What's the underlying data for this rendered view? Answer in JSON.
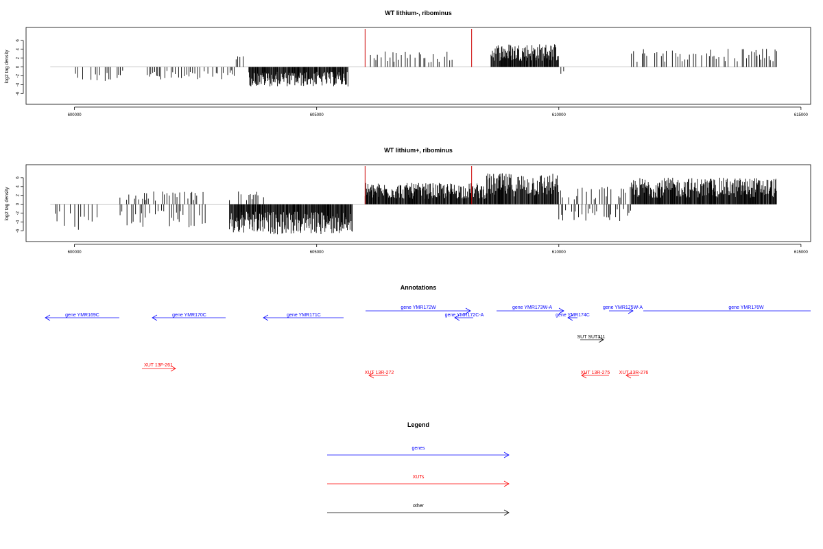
{
  "chart_data": [
    {
      "type": "bar",
      "title": "WT lithium-, ribominus",
      "ylabel": "log2 tag density",
      "ylim": [
        -7.5,
        8
      ],
      "yticks": [
        -6,
        -4,
        -2,
        0,
        2,
        4,
        6
      ],
      "xlim": [
        599000,
        615200
      ],
      "xticks": [
        600000,
        605000,
        610000,
        615000
      ],
      "markers": [
        606000,
        608200
      ],
      "segments": [
        {
          "start": 599500,
          "end": 600000,
          "sign": 0
        },
        {
          "start": 600020,
          "end": 601100,
          "sign": -1,
          "amp": 3.2
        },
        {
          "start": 601500,
          "end": 603300,
          "sign": -1,
          "amp": 2.8
        },
        {
          "start": 603300,
          "end": 603500,
          "sign": 1,
          "amp": 2.5
        },
        {
          "start": 603600,
          "end": 605650,
          "sign": -1,
          "amp": 4.4,
          "dense": 1
        },
        {
          "start": 606000,
          "end": 607800,
          "sign": 1,
          "amp": 3.5
        },
        {
          "start": 608600,
          "end": 610000,
          "sign": 1,
          "amp": 5.3,
          "dense": 1
        },
        {
          "start": 610000,
          "end": 610120,
          "sign": -1,
          "amp": 2.0
        },
        {
          "start": 611500,
          "end": 614500,
          "sign": 1,
          "amp": 4.2
        }
      ]
    },
    {
      "type": "bar",
      "title": "WT lithium+, ribominus",
      "ylabel": "log2 tag density",
      "ylim": [
        -7.5,
        8
      ],
      "yticks": [
        -6,
        -4,
        -2,
        0,
        2,
        4,
        6
      ],
      "xlim": [
        599000,
        615200
      ],
      "xticks": [
        600000,
        605000,
        610000,
        615000
      ],
      "markers": [
        606000,
        608200
      ],
      "segments": [
        {
          "start": 599500,
          "end": 600500,
          "sign": -1,
          "amp": 6.0
        },
        {
          "start": 600800,
          "end": 602700,
          "sign": -1,
          "amp": 5.5
        },
        {
          "start": 600800,
          "end": 602700,
          "sign": 1,
          "amp": 3.2
        },
        {
          "start": 603200,
          "end": 605750,
          "sign": -1,
          "amp": 6.8,
          "dense": 1
        },
        {
          "start": 603200,
          "end": 604000,
          "sign": 1,
          "amp": 3.5
        },
        {
          "start": 606000,
          "end": 608500,
          "sign": 1,
          "amp": 4.8,
          "dense": 1
        },
        {
          "start": 608500,
          "end": 610000,
          "sign": 1,
          "amp": 7.0,
          "dense": 1
        },
        {
          "start": 610000,
          "end": 611500,
          "sign": -1,
          "amp": 3.8
        },
        {
          "start": 610000,
          "end": 611500,
          "sign": 1,
          "amp": 4.0
        },
        {
          "start": 611500,
          "end": 614500,
          "sign": 1,
          "amp": 6.0,
          "dense": 1
        }
      ]
    }
  ],
  "annotations": {
    "title": "Annotations",
    "genes": [
      {
        "label": "gene YMR169C"
      },
      {
        "label": "gene YMR170C"
      },
      {
        "label": "gene YMR171C"
      },
      {
        "label": "gene YMR172W"
      },
      {
        "label": "gene YMR172C-A"
      },
      {
        "label": "gene YMR173W-A"
      },
      {
        "label": "gene YMR174C"
      },
      {
        "label": "gene YMR175W-A"
      },
      {
        "label": "gene YMR176W"
      }
    ],
    "xuts": [
      {
        "label": "XUT 13F-261"
      },
      {
        "label": "XUT 13R-272"
      },
      {
        "label": "XUT 13R-275"
      },
      {
        "label": "XUT 13R-276"
      }
    ],
    "other": [
      {
        "label": "SUT SUT311"
      }
    ]
  },
  "legend": {
    "title": "Legend",
    "genes_label": "genes",
    "xuts_label": "XUTs",
    "other_label": "other"
  },
  "colors": {
    "genes": "#0000ff",
    "xuts": "#ff0000",
    "other": "#000000",
    "marker": "#cc0000"
  }
}
